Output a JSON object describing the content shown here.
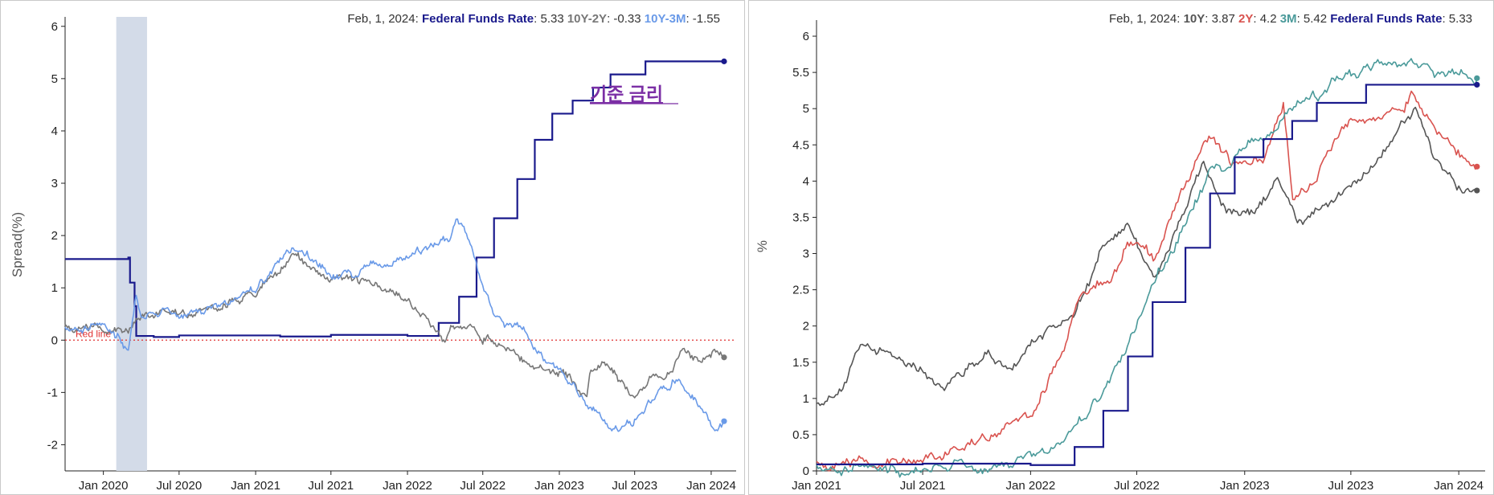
{
  "left_chart": {
    "ylabel": "Spread(%)",
    "header": {
      "date": "Feb, 1, 2024",
      "items": [
        {
          "name": "Federal Funds Rate",
          "value": "5.33",
          "color": "#1a1a8c"
        },
        {
          "name": "10Y-2Y",
          "value": "-0.33",
          "color": "#777777"
        },
        {
          "name": "10Y-3M",
          "value": "-1.55",
          "color": "#6a9ae8"
        }
      ]
    },
    "annotation": "기준 금리",
    "annotation_color": "#7b2fa5",
    "red_line_label": "Red line",
    "red_line_color": "#e03030",
    "recession_color": "#d3dbe8"
  },
  "right_chart": {
    "ylabel": "%",
    "header": {
      "date": "Feb, 1, 2024",
      "items": [
        {
          "name": "10Y",
          "value": "3.87",
          "color": "#555555"
        },
        {
          "name": "2Y",
          "value": "4.2",
          "color": "#d9534f"
        },
        {
          "name": "3M",
          "value": "5.42",
          "color": "#4a9a9a"
        },
        {
          "name": "Federal Funds Rate",
          "value": "5.33",
          "color": "#1a1a8c"
        }
      ]
    }
  },
  "chart_data": [
    {
      "type": "line",
      "ylabel": "Spread(%)",
      "xlabel": "",
      "x_ticks": [
        "Jan 2020",
        "Jul 2020",
        "Jan 2021",
        "Jul 2021",
        "Jan 2022",
        "Jul 2022",
        "Jan 2023",
        "Jul 2023",
        "Jan 2024"
      ],
      "y_ticks": [
        -2,
        -1,
        0,
        1,
        2,
        3,
        4,
        5,
        6
      ],
      "xlim": [
        "2019-10-01",
        "2024-03-01"
      ],
      "ylim": [
        -2.5,
        6.15
      ],
      "reference_line": {
        "y": 0,
        "label": "Red line"
      },
      "recession_band": [
        "2020-02-01",
        "2020-04-15"
      ],
      "series": [
        {
          "name": "Federal Funds Rate",
          "color": "#1a1a8c",
          "step": true,
          "points": [
            [
              "2019-10-01",
              1.55
            ],
            [
              "2020-03-01",
              1.58
            ],
            [
              "2020-03-05",
              1.1
            ],
            [
              "2020-03-16",
              0.65
            ],
            [
              "2020-03-20",
              0.08
            ],
            [
              "2020-05-01",
              0.06
            ],
            [
              "2020-07-01",
              0.09
            ],
            [
              "2021-03-01",
              0.07
            ],
            [
              "2021-07-01",
              0.1
            ],
            [
              "2022-01-01",
              0.08
            ],
            [
              "2022-03-17",
              0.33
            ],
            [
              "2022-05-05",
              0.83
            ],
            [
              "2022-06-16",
              1.58
            ],
            [
              "2022-07-28",
              2.33
            ],
            [
              "2022-09-22",
              3.08
            ],
            [
              "2022-11-03",
              3.83
            ],
            [
              "2022-12-15",
              4.33
            ],
            [
              "2023-02-02",
              4.58
            ],
            [
              "2023-03-23",
              4.83
            ],
            [
              "2023-05-04",
              5.08
            ],
            [
              "2023-07-27",
              5.33
            ],
            [
              "2024-02-01",
              5.33
            ]
          ]
        },
        {
          "name": "10Y-2Y",
          "color": "#777777",
          "points": [
            [
              "2019-10-01",
              0.3
            ],
            [
              "2020-01-01",
              0.25
            ],
            [
              "2020-03-01",
              0.2
            ],
            [
              "2020-03-20",
              0.45
            ],
            [
              "2020-05-01",
              0.5
            ],
            [
              "2020-07-01",
              0.5
            ],
            [
              "2020-10-01",
              0.6
            ],
            [
              "2021-01-01",
              0.9
            ],
            [
              "2021-03-01",
              1.4
            ],
            [
              "2021-04-01",
              1.6
            ],
            [
              "2021-06-01",
              1.3
            ],
            [
              "2021-07-01",
              1.2
            ],
            [
              "2021-10-01",
              1.1
            ],
            [
              "2022-01-01",
              0.8
            ],
            [
              "2022-02-01",
              0.5
            ],
            [
              "2022-03-01",
              0.2
            ],
            [
              "2022-04-01",
              0.0
            ],
            [
              "2022-04-15",
              0.35
            ],
            [
              "2022-06-01",
              0.3
            ],
            [
              "2022-07-01",
              0.1
            ],
            [
              "2022-09-01",
              -0.2
            ],
            [
              "2022-11-01",
              -0.5
            ],
            [
              "2023-01-01",
              -0.65
            ],
            [
              "2023-02-01",
              -0.8
            ],
            [
              "2023-03-08",
              -1.05
            ],
            [
              "2023-03-15",
              -0.55
            ],
            [
              "2023-05-01",
              -0.5
            ],
            [
              "2023-06-15",
              -0.95
            ],
            [
              "2023-07-01",
              -1.05
            ],
            [
              "2023-08-15",
              -0.7
            ],
            [
              "2023-09-15",
              -0.6
            ],
            [
              "2023-10-25",
              -0.2
            ],
            [
              "2023-12-01",
              -0.4
            ],
            [
              "2024-01-15",
              -0.2
            ],
            [
              "2024-02-01",
              -0.33
            ]
          ]
        },
        {
          "name": "10Y-3M",
          "color": "#6a9ae8",
          "points": [
            [
              "2019-10-01",
              0.25
            ],
            [
              "2020-01-01",
              0.3
            ],
            [
              "2020-02-01",
              0.1
            ],
            [
              "2020-03-01",
              -0.1
            ],
            [
              "2020-03-20",
              0.9
            ],
            [
              "2020-04-01",
              0.45
            ],
            [
              "2020-05-01",
              0.5
            ],
            [
              "2020-07-01",
              0.5
            ],
            [
              "2020-10-01",
              0.6
            ],
            [
              "2021-01-01",
              0.95
            ],
            [
              "2021-03-01",
              1.5
            ],
            [
              "2021-04-01",
              1.7
            ],
            [
              "2021-06-01",
              1.5
            ],
            [
              "2021-07-01",
              1.2
            ],
            [
              "2021-09-01",
              1.3
            ],
            [
              "2021-11-01",
              1.45
            ],
            [
              "2022-01-01",
              1.55
            ],
            [
              "2022-03-01",
              1.85
            ],
            [
              "2022-04-15",
              2.0
            ],
            [
              "2022-05-01",
              2.3
            ],
            [
              "2022-06-01",
              1.8
            ],
            [
              "2022-07-01",
              1.0
            ],
            [
              "2022-08-01",
              0.4
            ],
            [
              "2022-10-01",
              0.2
            ],
            [
              "2022-11-15",
              -0.2
            ],
            [
              "2023-01-01",
              -0.6
            ],
            [
              "2023-02-15",
              -1.0
            ],
            [
              "2023-03-15",
              -1.25
            ],
            [
              "2023-05-01",
              -1.7
            ],
            [
              "2023-06-01",
              -1.7
            ],
            [
              "2023-07-01",
              -1.6
            ],
            [
              "2023-08-15",
              -1.1
            ],
            [
              "2023-10-15",
              -0.7
            ],
            [
              "2023-12-01",
              -1.2
            ],
            [
              "2024-01-10",
              -1.6
            ],
            [
              "2024-02-01",
              -1.55
            ]
          ]
        }
      ]
    },
    {
      "type": "line",
      "ylabel": "%",
      "xlabel": "",
      "x_ticks": [
        "Jan 2021",
        "Jul 2021",
        "Jan 2022",
        "Jul 2022",
        "Jan 2023",
        "Jul 2023",
        "Jan 2024"
      ],
      "y_ticks": [
        0,
        0.5,
        1,
        1.5,
        2,
        2.5,
        3,
        3.5,
        4,
        4.5,
        5,
        5.5,
        6
      ],
      "xlim": [
        "2021-01-01",
        "2024-02-15"
      ],
      "ylim": [
        0,
        6.2
      ],
      "series": [
        {
          "name": "10Y",
          "color": "#555555",
          "points": [
            [
              "2021-01-01",
              0.93
            ],
            [
              "2021-02-15",
              1.2
            ],
            [
              "2021-03-20",
              1.7
            ],
            [
              "2021-05-01",
              1.6
            ],
            [
              "2021-06-15",
              1.5
            ],
            [
              "2021-08-01",
              1.2
            ],
            [
              "2021-10-15",
              1.6
            ],
            [
              "2021-12-01",
              1.45
            ],
            [
              "2022-01-15",
              1.8
            ],
            [
              "2022-02-15",
              2.0
            ],
            [
              "2022-03-15",
              2.2
            ],
            [
              "2022-05-01",
              3.0
            ],
            [
              "2022-06-15",
              3.4
            ],
            [
              "2022-08-01",
              2.65
            ],
            [
              "2022-09-01",
              3.2
            ],
            [
              "2022-10-20",
              4.2
            ],
            [
              "2022-12-01",
              3.6
            ],
            [
              "2023-01-15",
              3.5
            ],
            [
              "2023-03-01",
              4.0
            ],
            [
              "2023-04-01",
              3.4
            ],
            [
              "2023-06-01",
              3.7
            ],
            [
              "2023-08-01",
              4.2
            ],
            [
              "2023-10-19",
              5.0
            ],
            [
              "2023-12-01",
              4.2
            ],
            [
              "2024-01-01",
              3.9
            ],
            [
              "2024-02-01",
              3.87
            ]
          ]
        },
        {
          "name": "2Y",
          "color": "#d9534f",
          "points": [
            [
              "2021-01-01",
              0.13
            ],
            [
              "2021-06-01",
              0.16
            ],
            [
              "2021-09-01",
              0.25
            ],
            [
              "2021-11-01",
              0.55
            ],
            [
              "2022-01-01",
              0.75
            ],
            [
              "2022-02-15",
              1.45
            ],
            [
              "2022-04-01",
              2.5
            ],
            [
              "2022-05-15",
              2.6
            ],
            [
              "2022-06-15",
              3.2
            ],
            [
              "2022-08-01",
              2.9
            ],
            [
              "2022-09-15",
              3.9
            ],
            [
              "2022-11-01",
              4.6
            ],
            [
              "2022-12-15",
              4.2
            ],
            [
              "2023-02-01",
              4.3
            ],
            [
              "2023-03-08",
              5.05
            ],
            [
              "2023-03-24",
              3.8
            ],
            [
              "2023-05-01",
              4.0
            ],
            [
              "2023-07-01",
              4.9
            ],
            [
              "2023-09-01",
              4.95
            ],
            [
              "2023-10-15",
              5.2
            ],
            [
              "2023-12-01",
              4.6
            ],
            [
              "2024-01-15",
              4.3
            ],
            [
              "2024-02-01",
              4.2
            ]
          ]
        },
        {
          "name": "3M",
          "color": "#4a9a9a",
          "points": [
            [
              "2021-01-01",
              0.08
            ],
            [
              "2021-06-01",
              0.04
            ],
            [
              "2021-11-01",
              0.05
            ],
            [
              "2022-01-15",
              0.2
            ],
            [
              "2022-03-01",
              0.4
            ],
            [
              "2022-04-15",
              0.85
            ],
            [
              "2022-06-15",
              1.65
            ],
            [
              "2022-08-01",
              2.6
            ],
            [
              "2022-09-15",
              3.3
            ],
            [
              "2022-11-01",
              4.1
            ],
            [
              "2023-01-01",
              4.4
            ],
            [
              "2023-02-15",
              4.7
            ],
            [
              "2023-04-01",
              5.05
            ],
            [
              "2023-05-15",
              5.2
            ],
            [
              "2023-06-01",
              5.45
            ],
            [
              "2023-08-01",
              5.55
            ],
            [
              "2023-10-15",
              5.6
            ],
            [
              "2023-12-15",
              5.45
            ],
            [
              "2024-02-01",
              5.42
            ]
          ]
        },
        {
          "name": "Federal Funds Rate",
          "color": "#1a1a8c",
          "step": true,
          "points": [
            [
              "2021-01-01",
              0.09
            ],
            [
              "2021-07-01",
              0.1
            ],
            [
              "2022-01-01",
              0.08
            ],
            [
              "2022-03-17",
              0.33
            ],
            [
              "2022-05-05",
              0.83
            ],
            [
              "2022-06-16",
              1.58
            ],
            [
              "2022-07-28",
              2.33
            ],
            [
              "2022-09-22",
              3.08
            ],
            [
              "2022-11-03",
              3.83
            ],
            [
              "2022-12-15",
              4.33
            ],
            [
              "2023-02-02",
              4.58
            ],
            [
              "2023-03-23",
              4.83
            ],
            [
              "2023-05-04",
              5.08
            ],
            [
              "2023-07-27",
              5.33
            ],
            [
              "2024-02-01",
              5.33
            ]
          ]
        }
      ]
    }
  ]
}
